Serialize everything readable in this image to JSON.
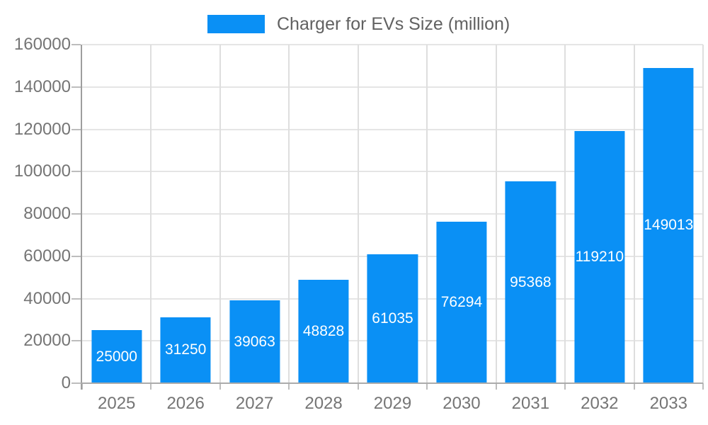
{
  "chart_data": {
    "type": "bar",
    "title": "Charger for EVs Size (million)",
    "legend_position": "top",
    "categories": [
      "2025",
      "2026",
      "2027",
      "2028",
      "2029",
      "2030",
      "2031",
      "2032",
      "2033"
    ],
    "values": [
      25000,
      31250,
      39063,
      48828,
      61035,
      76294,
      95368,
      119210,
      149013
    ],
    "xlabel": "",
    "ylabel": "",
    "ylim": [
      0,
      160000
    ],
    "yticks": [
      0,
      20000,
      40000,
      60000,
      80000,
      100000,
      120000,
      140000,
      160000
    ],
    "grid": true,
    "bar_color": "#0a90f5",
    "value_label_color": "#ffffff"
  },
  "colors": {
    "accent_blue": "#0a90f5",
    "axis_text": "#757575",
    "title_text": "#616161",
    "gridline": "#e5e5e5",
    "axis_line": "#9e9e9e"
  }
}
